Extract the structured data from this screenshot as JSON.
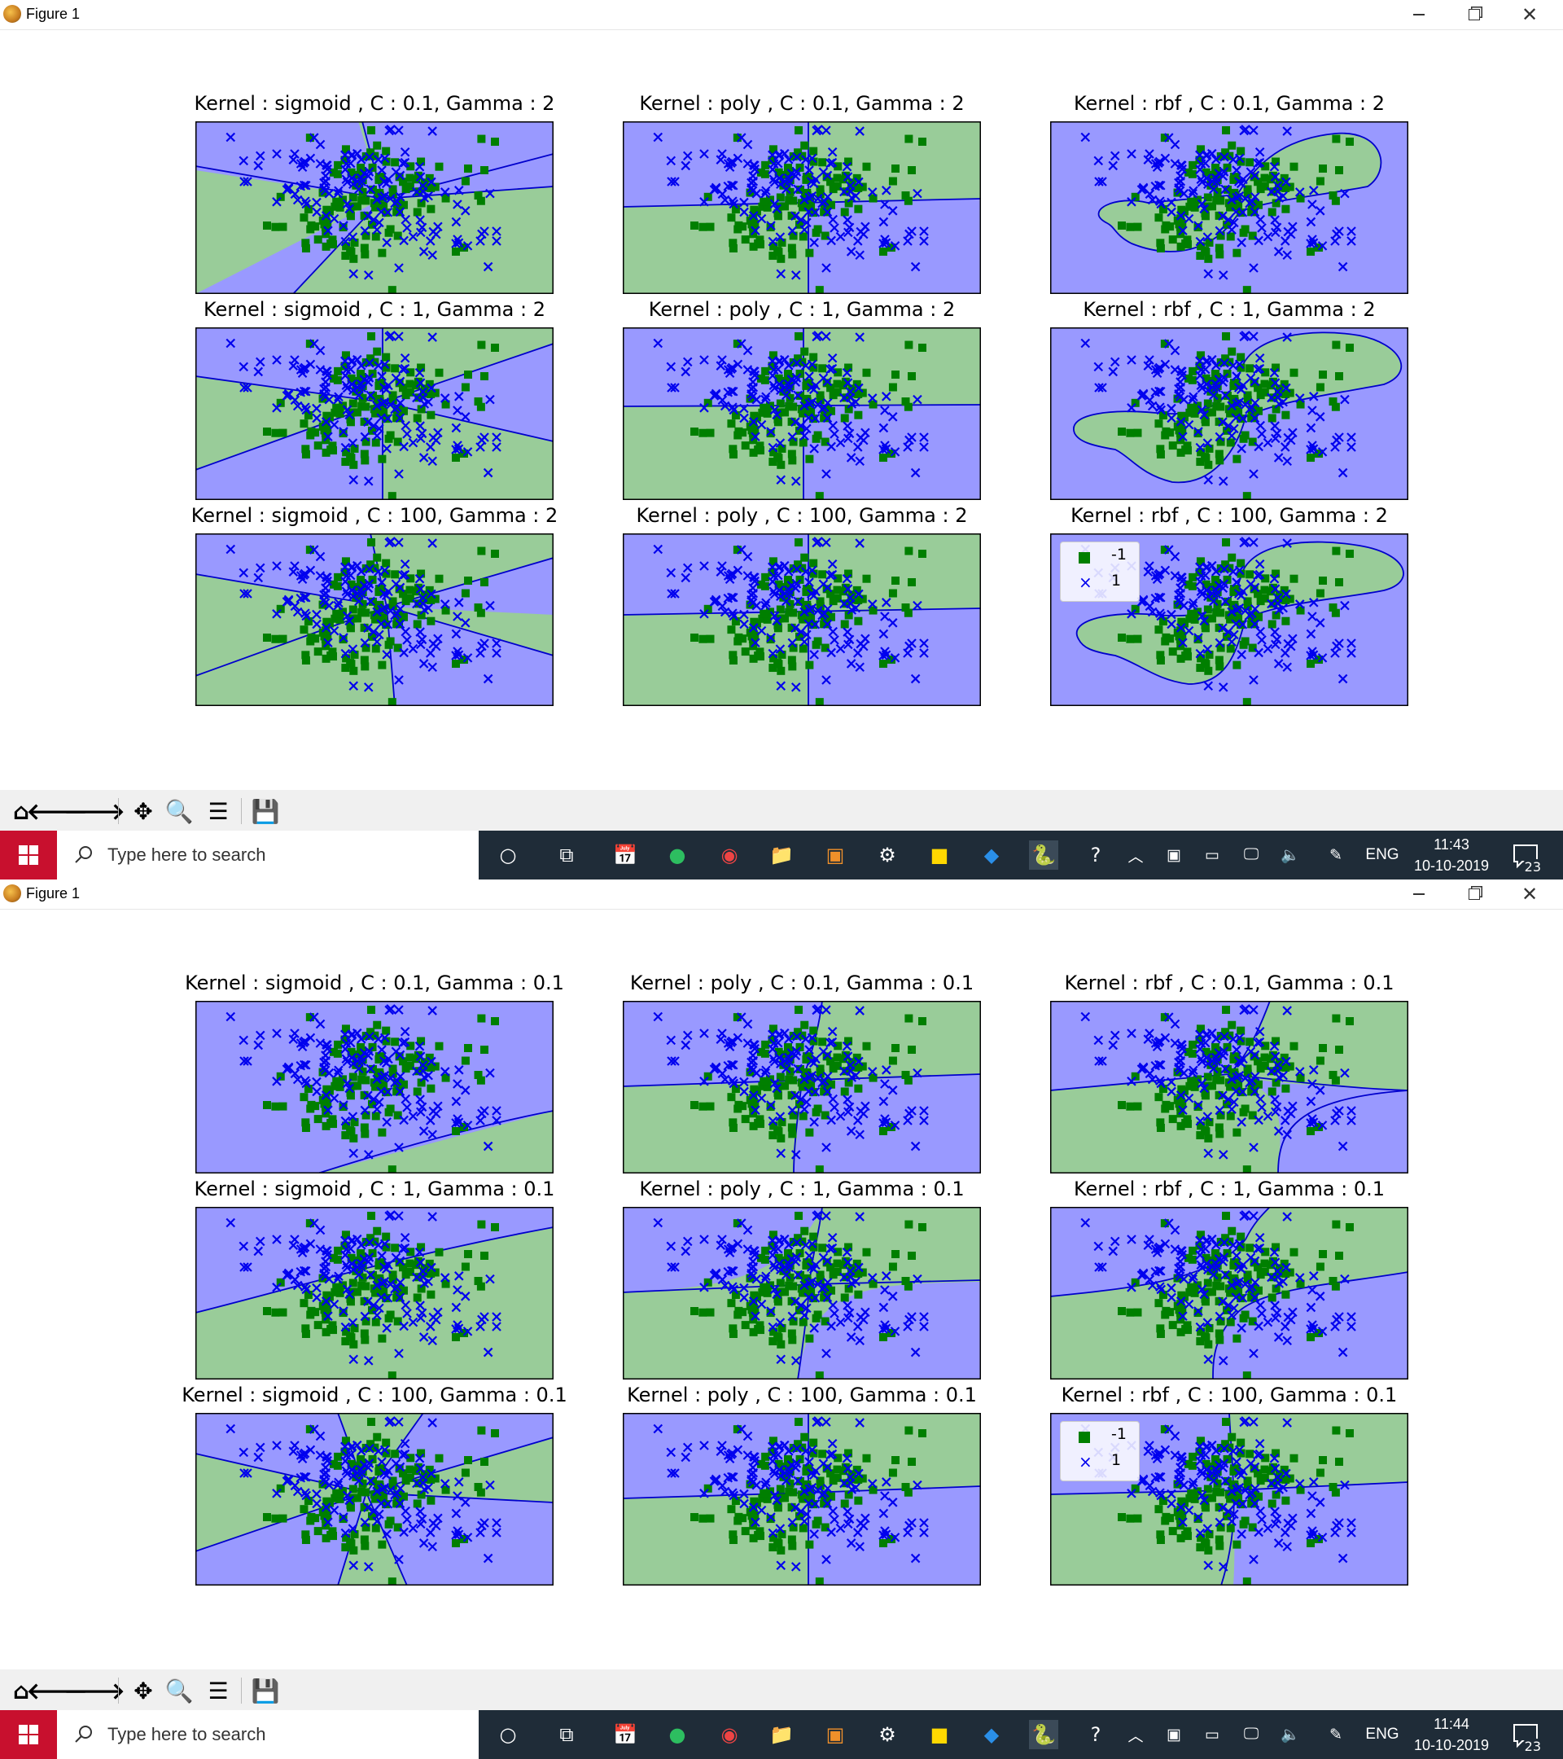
{
  "colors": {
    "green_region": "#99cc99",
    "blue_region": "#9999ff",
    "boundary": "#0000cc",
    "green_marker": "#007f00",
    "blue_marker": "#0000ee",
    "taskbar": "#1f2c38"
  },
  "screens": [
    {
      "window": {
        "title": "Figure 1",
        "minimize_icon": "minimize-icon",
        "restore_icon": "restore-icon",
        "close_icon": "close-icon"
      },
      "plots": [
        {
          "title": "Kernel : sigmoid , C : 0.1, Gamma : 2"
        },
        {
          "title": "Kernel : poly , C : 0.1, Gamma : 2"
        },
        {
          "title": "Kernel : rbf , C : 0.1, Gamma : 2"
        },
        {
          "title": "Kernel : sigmoid , C : 1, Gamma : 2"
        },
        {
          "title": "Kernel : poly , C : 1, Gamma : 2"
        },
        {
          "title": "Kernel : rbf , C : 1, Gamma : 2"
        },
        {
          "title": "Kernel : sigmoid , C : 100, Gamma : 2"
        },
        {
          "title": "Kernel : poly , C : 100, Gamma : 2"
        },
        {
          "title": "Kernel : rbf , C : 100, Gamma : 2"
        }
      ],
      "legend": {
        "items": [
          {
            "label": "-1"
          },
          {
            "label": "1"
          }
        ]
      },
      "taskbar": {
        "search_placeholder": "Type here to search",
        "lang": "ENG",
        "time": "11:43",
        "date": "10-10-2019",
        "notifications": "23"
      }
    },
    {
      "window": {
        "title": "Figure 1",
        "minimize_icon": "minimize-icon",
        "restore_icon": "restore-icon",
        "close_icon": "close-icon"
      },
      "plots": [
        {
          "title": "Kernel : sigmoid , C : 0.1, Gamma : 0.1"
        },
        {
          "title": "Kernel : poly , C : 0.1, Gamma : 0.1"
        },
        {
          "title": "Kernel : rbf , C : 0.1, Gamma : 0.1"
        },
        {
          "title": "Kernel : sigmoid , C : 1, Gamma : 0.1"
        },
        {
          "title": "Kernel : poly , C : 1, Gamma : 0.1"
        },
        {
          "title": "Kernel : rbf , C : 1, Gamma : 0.1"
        },
        {
          "title": "Kernel : sigmoid , C : 100, Gamma : 0.1"
        },
        {
          "title": "Kernel : poly , C : 100, Gamma : 0.1"
        },
        {
          "title": "Kernel : rbf , C : 100, Gamma : 0.1"
        }
      ],
      "legend": {
        "items": [
          {
            "label": "-1"
          },
          {
            "label": "1"
          }
        ]
      },
      "taskbar": {
        "search_placeholder": "Type here to search",
        "lang": "ENG",
        "time": "11:44",
        "date": "10-10-2019",
        "notifications": "23"
      }
    }
  ],
  "toolbar_icons": [
    "home-icon",
    "back-icon",
    "forward-icon",
    "pan-icon",
    "zoom-icon",
    "configure-subplots-icon",
    "save-icon"
  ],
  "taskbar_icons": [
    "cortana-icon",
    "task-view-icon",
    "calendar-icon",
    "evernote-icon",
    "chrome-icon",
    "file-explorer-icon",
    "pdf-icon",
    "settings-icon",
    "sticky-notes-icon",
    "vscode-icon",
    "python-icon",
    "help-icon"
  ],
  "chart_data": []
}
